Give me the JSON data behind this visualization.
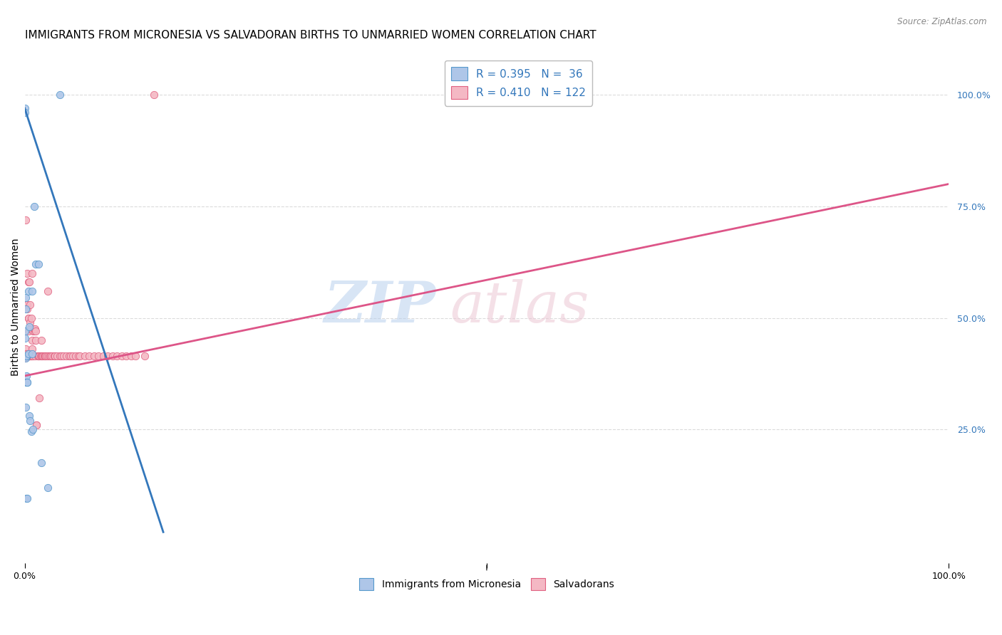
{
  "title": "IMMIGRANTS FROM MICRONESIA VS SALVADORAN BIRTHS TO UNMARRIED WOMEN CORRELATION CHART",
  "source": "Source: ZipAtlas.com",
  "ylabel": "Births to Unmarried Women",
  "y_tick_labels": [
    "100.0%",
    "75.0%",
    "50.0%",
    "25.0%"
  ],
  "y_tick_positions": [
    100.0,
    75.0,
    50.0,
    25.0
  ],
  "legend_blue_r": "R = 0.395",
  "legend_blue_n": "N =  36",
  "legend_pink_r": "R = 0.410",
  "legend_pink_n": "N = 122",
  "legend_label_blue": "Immigrants from Micronesia",
  "legend_label_pink": "Salvadorans",
  "blue_fill_color": "#aec6e8",
  "pink_fill_color": "#f4b8c4",
  "blue_edge_color": "#5599cc",
  "pink_edge_color": "#e06080",
  "blue_line_color": "#3377bb",
  "pink_line_color": "#dd5588",
  "watermark_zip_color": "#ccddf0",
  "watermark_atlas_color": "#f0d8e0",
  "blue_scatter_x": [
    0.2,
    0.3,
    0.0,
    0.0,
    0.1,
    0.1,
    0.0,
    0.0,
    0.1,
    0.15,
    0.2,
    0.1,
    0.1,
    0.1,
    0.1,
    0.2,
    0.2,
    0.2,
    0.2,
    0.3,
    0.3,
    0.4,
    0.4,
    0.5,
    0.5,
    0.6,
    0.7,
    0.8,
    0.8,
    0.9,
    1.0,
    1.2,
    1.5,
    1.8,
    2.5,
    3.8
  ],
  "blue_scatter_y": [
    9.5,
    9.5,
    97.0,
    96.0,
    30.0,
    54.5,
    47.0,
    45.5,
    52.0,
    41.5,
    41.5,
    41.5,
    41.5,
    41.0,
    41.5,
    41.5,
    41.5,
    37.0,
    35.5,
    35.5,
    35.5,
    42.0,
    56.0,
    48.0,
    28.0,
    27.0,
    24.5,
    56.0,
    42.0,
    25.0,
    75.0,
    62.0,
    62.0,
    17.5,
    12.0,
    100.0
  ],
  "pink_scatter_x": [
    0.0,
    0.0,
    0.0,
    0.0,
    0.0,
    0.0,
    0.0,
    0.0,
    0.0,
    0.0,
    0.0,
    0.1,
    0.1,
    0.1,
    0.1,
    0.1,
    0.1,
    0.1,
    0.1,
    0.1,
    0.1,
    0.2,
    0.2,
    0.2,
    0.2,
    0.2,
    0.2,
    0.2,
    0.2,
    0.2,
    0.2,
    0.3,
    0.3,
    0.3,
    0.3,
    0.3,
    0.3,
    0.3,
    0.3,
    0.3,
    0.4,
    0.4,
    0.4,
    0.4,
    0.4,
    0.4,
    0.4,
    0.5,
    0.5,
    0.5,
    0.5,
    0.5,
    0.5,
    0.6,
    0.6,
    0.6,
    0.6,
    0.6,
    0.7,
    0.7,
    0.7,
    0.7,
    0.8,
    0.8,
    0.8,
    0.9,
    0.9,
    0.9,
    1.0,
    1.0,
    1.1,
    1.1,
    1.2,
    1.2,
    1.3,
    1.3,
    1.4,
    1.5,
    1.5,
    1.6,
    1.6,
    1.7,
    1.8,
    1.8,
    1.9,
    2.0,
    2.1,
    2.2,
    2.3,
    2.4,
    2.5,
    2.6,
    2.7,
    2.8,
    3.0,
    3.2,
    3.3,
    3.5,
    3.8,
    4.0,
    4.2,
    4.5,
    4.8,
    5.0,
    5.2,
    5.5,
    5.8,
    6.0,
    6.5,
    7.0,
    7.5,
    8.0,
    8.5,
    9.0,
    9.5,
    10.0,
    10.5,
    11.0,
    11.5,
    12.0,
    13.0,
    14.0
  ],
  "pink_scatter_y": [
    41.5,
    42.0,
    41.0,
    41.5,
    41.5,
    42.0,
    41.5,
    41.5,
    41.5,
    41.5,
    41.5,
    72.0,
    41.5,
    41.5,
    41.5,
    41.5,
    42.0,
    41.5,
    41.5,
    43.0,
    41.5,
    41.5,
    41.5,
    41.5,
    42.0,
    41.5,
    41.5,
    41.5,
    41.5,
    53.0,
    41.5,
    41.5,
    42.0,
    53.0,
    41.5,
    60.0,
    41.5,
    41.5,
    52.0,
    41.5,
    50.0,
    41.5,
    41.5,
    47.0,
    50.0,
    41.5,
    58.0,
    41.5,
    58.0,
    41.5,
    42.0,
    41.5,
    41.5,
    41.5,
    47.5,
    49.0,
    53.0,
    41.5,
    41.5,
    41.5,
    41.5,
    50.0,
    43.0,
    60.0,
    45.0,
    41.5,
    41.5,
    47.0,
    47.0,
    47.5,
    47.5,
    41.5,
    45.0,
    47.0,
    26.0,
    26.0,
    41.5,
    41.5,
    41.5,
    32.0,
    41.5,
    41.5,
    41.5,
    45.0,
    41.5,
    41.5,
    41.5,
    41.5,
    41.5,
    41.5,
    56.0,
    41.5,
    41.5,
    41.5,
    41.5,
    41.5,
    41.5,
    41.5,
    41.5,
    41.5,
    41.5,
    41.5,
    41.5,
    41.5,
    41.5,
    41.5,
    41.5,
    41.5,
    41.5,
    41.5,
    41.5,
    41.5,
    41.5,
    41.5,
    41.5,
    41.5,
    41.5,
    41.5,
    41.5,
    41.5,
    41.5,
    100.0
  ],
  "blue_trendline_x": [
    0.0,
    15.0
  ],
  "blue_trendline_y": [
    97.0,
    2.0
  ],
  "pink_trendline_x": [
    0.0,
    100.0
  ],
  "pink_trendline_y": [
    37.0,
    80.0
  ],
  "xlim": [
    0.0,
    100.0
  ],
  "ylim": [
    -5.0,
    110.0
  ],
  "grid_color": "#cccccc",
  "background_color": "#ffffff",
  "title_fontsize": 11,
  "axis_label_fontsize": 10,
  "tick_label_fontsize": 9
}
